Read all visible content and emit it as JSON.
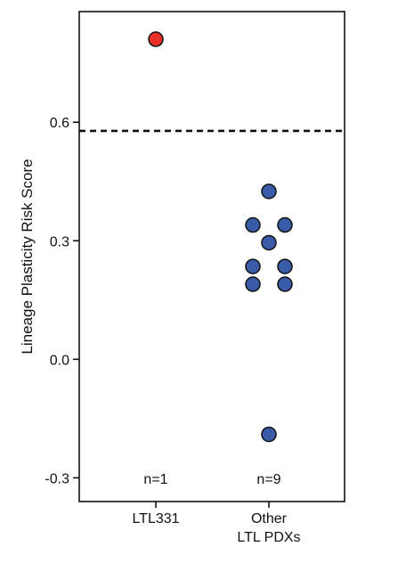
{
  "chart_data": {
    "type": "scatter",
    "ylabel": "Lineage Plasticity Risk Score",
    "xlabel": "",
    "ylim": [
      -0.36,
      0.88
    ],
    "yticks": [
      -0.3,
      0.0,
      0.3,
      0.6
    ],
    "ytick_labels": [
      "-0.3",
      "0.0",
      "0.3",
      "0.6"
    ],
    "threshold": 0.578,
    "grid": false,
    "legend": "none",
    "categories": [
      {
        "lines": [
          "LTL331"
        ],
        "count_label": "n=1"
      },
      {
        "lines": [
          "Other",
          "LTL PDXs"
        ],
        "count_label": "n=9"
      }
    ],
    "series": [
      {
        "color": "#e8302a",
        "points": [
          {
            "category": 0,
            "offset": 0,
            "y": 0.81
          }
        ]
      },
      {
        "color": "#3a5ca8",
        "points": [
          {
            "category": 1,
            "offset": 0,
            "y": 0.425
          },
          {
            "category": 1,
            "offset": -1,
            "y": 0.34
          },
          {
            "category": 1,
            "offset": 1,
            "y": 0.34
          },
          {
            "category": 1,
            "offset": 0,
            "y": 0.295
          },
          {
            "category": 1,
            "offset": -1,
            "y": 0.235
          },
          {
            "category": 1,
            "offset": 1,
            "y": 0.235
          },
          {
            "category": 1,
            "offset": -1,
            "y": 0.19
          },
          {
            "category": 1,
            "offset": 1,
            "y": 0.19
          },
          {
            "category": 1,
            "offset": 0,
            "y": -0.19
          }
        ]
      }
    ]
  }
}
